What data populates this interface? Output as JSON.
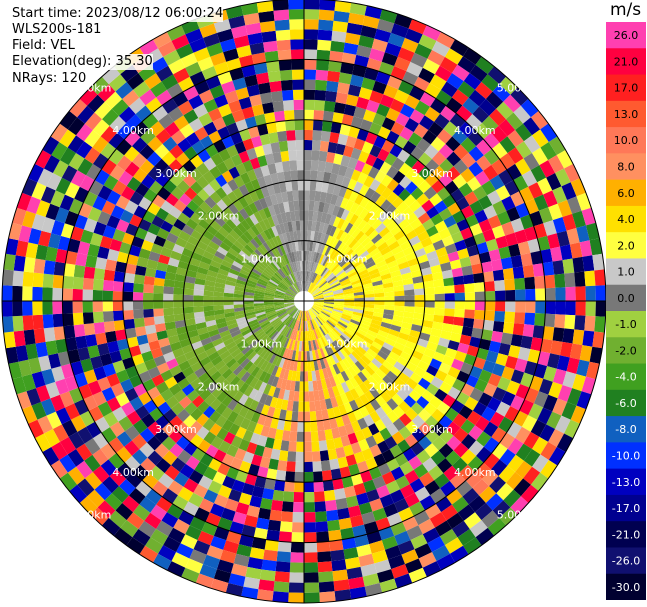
{
  "header": {
    "start_time": "Start time: 2023/08/12 06:00:24",
    "instrument": "WLS200s-181",
    "field": "Field: VEL",
    "elevation": "Elevation(deg): 35.30",
    "nrays": "NRays: 120"
  },
  "colorbar": {
    "unit": "m/s",
    "ticks": [
      "26.0",
      "21.0",
      "17.0",
      "13.0",
      "10.0",
      "8.0",
      "6.0",
      "4.0",
      "2.0",
      "1.0",
      "0.0",
      "-1.0",
      "-2.0",
      "-4.0",
      "-6.0",
      "-8.0",
      "-10.0",
      "-13.0",
      "-17.0",
      "-21.0",
      "-26.0",
      "-30.0"
    ],
    "colors": [
      "#ff40b0",
      "#ff0040",
      "#ff2020",
      "#ff5a30",
      "#ff7858",
      "#ff9060",
      "#ffb000",
      "#ffe000",
      "#ffff40",
      "#c8c8c8",
      "#787878",
      "#a0d040",
      "#70b030",
      "#40a020",
      "#208020",
      "#1060c0",
      "#0030ff",
      "#0000c0",
      "#000090",
      "#000050",
      "#101070",
      "#000030"
    ]
  },
  "chart_data": {
    "type": "heatmap",
    "subtype": "ppi-polar",
    "field": "VEL",
    "unit": "m/s",
    "nrays": 120,
    "elevation_deg": 35.3,
    "range_rings_km": [
      1.0,
      2.0,
      3.0,
      4.0,
      5.0
    ],
    "ring_labels": [
      "1.00km",
      "2.00km",
      "3.00km",
      "4.00km",
      "5.00km"
    ],
    "value_range": [
      -30.0,
      26.0
    ],
    "grid": true
  }
}
